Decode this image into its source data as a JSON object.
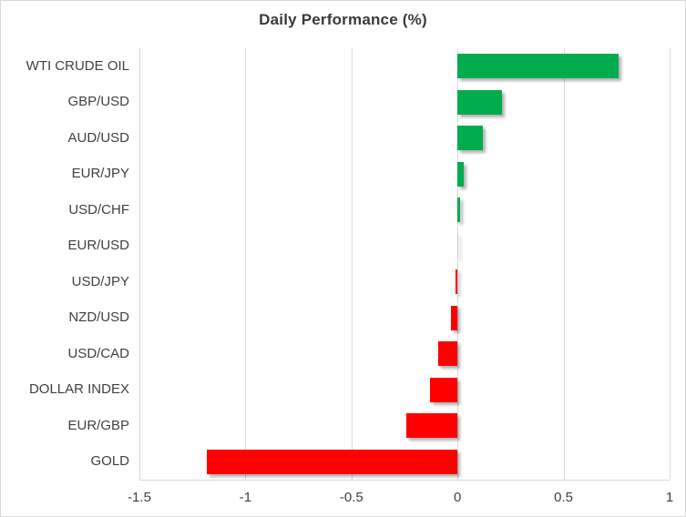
{
  "title": "Daily Performance (%)",
  "colors": {
    "positive": "#00AC4E",
    "negative": "#FF0000",
    "zero_sliver": "#C8C8C8",
    "gridline": "#D9D9D9",
    "frame_border": "#D9D9D9",
    "title_text": "#3A3A3A",
    "axis_text": "#404040",
    "background": "#FFFFFF"
  },
  "chart_data": {
    "type": "bar",
    "orientation": "horizontal",
    "title": "Daily Performance (%)",
    "categories": [
      "WTI CRUDE OIL",
      "GBP/USD",
      "AUD/USD",
      "EUR/JPY",
      "USD/CHF",
      "EUR/USD",
      "USD/JPY",
      "NZD/USD",
      "USD/CAD",
      "DOLLAR INDEX",
      "EUR/GBP",
      "GOLD"
    ],
    "values": [
      0.76,
      0.21,
      0.12,
      0.03,
      0.01,
      0.0,
      -0.01,
      -0.03,
      -0.09,
      -0.13,
      -0.24,
      -1.18
    ],
    "xlabel": "",
    "ylabel": "",
    "xlim": [
      -1.5,
      1
    ],
    "xticks": [
      -1.5,
      -1,
      -0.5,
      0,
      0.5,
      1
    ],
    "xtick_labels": [
      "-1.5",
      "-1",
      "-0.5",
      "0",
      "0.5",
      "1"
    ],
    "grid": "vertical-gridlines-on",
    "legend": "none",
    "bar_color_rule": "green-if-positive-red-if-negative"
  }
}
